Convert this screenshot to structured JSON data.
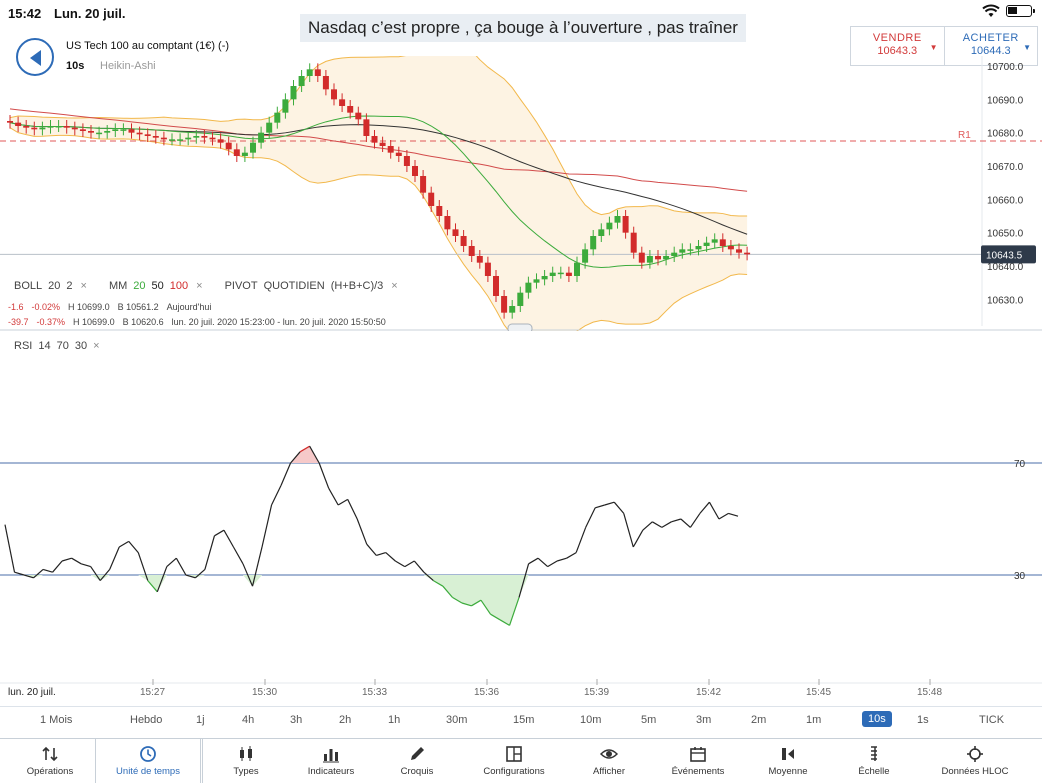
{
  "status": {
    "time": "15:42",
    "date": "Lun. 20 juil."
  },
  "caption": "Nasdaq c’est propre , ça bouge à l’ouverture , pas traîner",
  "instrument": {
    "name": "US Tech 100 au comptant (1€) (-)",
    "timeframe": "10s",
    "candle_type": "Heikin-Ashi"
  },
  "quotes": {
    "sell": {
      "label": "VENDRE",
      "price": "10643.3"
    },
    "buy": {
      "label": "ACHETER",
      "price": "10644.3"
    }
  },
  "price_axis": {
    "ticks": [
      "10700.0",
      "10690.0",
      "10680.0",
      "10670.0",
      "10660.0",
      "10650.0",
      "10640.0",
      "10630.0"
    ],
    "current_price": "10643.5",
    "pivot_label": "R1",
    "pivot_value": 10677.5
  },
  "indicators": {
    "boll": {
      "name": "BOLL",
      "p1": "20",
      "p2": "2"
    },
    "mm": {
      "name": "MM",
      "p1": "20",
      "p2": "50",
      "p3": "100"
    },
    "pivot": {
      "name": "PIVOT",
      "period": "QUOTIDIEN",
      "formula": "(H+B+C)/3"
    },
    "close_glyph": "×"
  },
  "stats": [
    {
      "change": "-1.6",
      "pct": "-0.02%",
      "high": "H 10699.0",
      "low": "B 10561.2",
      "period": "Aujourd'hui"
    },
    {
      "change": "-39.7",
      "pct": "-0.37%",
      "high": "H 10699.0",
      "low": "B 10620.6",
      "period": "lun. 20 juil. 2020 15:23:00 - lun. 20 juil. 2020 15:50:50"
    }
  ],
  "rsi": {
    "name": "RSI",
    "p1": "14",
    "p2": "70",
    "p3": "30",
    "upper": "70",
    "lower": "30"
  },
  "time_axis": {
    "date_label": "lun. 20 juil.",
    "ticks": [
      "15:27",
      "15:30",
      "15:33",
      "15:36",
      "15:39",
      "15:42",
      "15:45",
      "15:48"
    ]
  },
  "timeframes": [
    "1 Mois",
    "Hebdo",
    "1j",
    "4h",
    "3h",
    "2h",
    "1h",
    "30m",
    "15m",
    "10m",
    "5m",
    "3m",
    "2m",
    "1m",
    "10s",
    "1s",
    "TICK"
  ],
  "active_timeframe": "10s",
  "toolbar": [
    {
      "label": "Opérations",
      "icon": "arrows-updown-icon"
    },
    {
      "label": "Unité de temps",
      "icon": "clock-icon"
    },
    {
      "label": "Types",
      "icon": "candles-icon"
    },
    {
      "label": "Indicateurs",
      "icon": "bar-chart-icon"
    },
    {
      "label": "Croquis",
      "icon": "pencil-icon"
    },
    {
      "label": "Configurations",
      "icon": "layout-icon"
    },
    {
      "label": "Afficher",
      "icon": "eye-icon"
    },
    {
      "label": "Événements",
      "icon": "calendar-icon"
    },
    {
      "label": "Moyenne",
      "icon": "average-icon"
    },
    {
      "label": "Échelle",
      "icon": "scale-icon"
    },
    {
      "label": "Données HLOC",
      "icon": "crosshair-icon"
    }
  ],
  "selected_tool": "Unité de temps",
  "colors": {
    "accent": "#2d6bb7",
    "bull": "#3cab3c",
    "bear": "#d22b2b",
    "band": "#f2b84b",
    "pivot": "#e05a5a"
  },
  "chart_data": [
    {
      "type": "candlestick",
      "title": "US Tech 100 au comptant (1€) (-)",
      "ylim": [
        10622,
        10703
      ],
      "x_ticks": [
        "15:27",
        "15:30",
        "15:33",
        "15:36",
        "15:39",
        "15:42",
        "15:45",
        "15:48"
      ],
      "close": [
        10683,
        10682,
        10681.5,
        10681,
        10681.5,
        10682,
        10682,
        10681.5,
        10681,
        10680.5,
        10680,
        10680,
        10680.5,
        10681,
        10681,
        10680,
        10679.5,
        10679,
        10678.5,
        10678,
        10678,
        10678,
        10678.5,
        10679,
        10678.5,
        10678,
        10677,
        10675,
        10673,
        10674,
        10677,
        10680,
        10683,
        10686,
        10690,
        10694,
        10697,
        10699,
        10697,
        10693,
        10690,
        10688,
        10686,
        10684,
        10679,
        10677,
        10676,
        10674,
        10673,
        10670,
        10667,
        10662,
        10658,
        10655,
        10651,
        10649,
        10646,
        10643,
        10641,
        10637,
        10631,
        10626,
        10628,
        10632,
        10635,
        10636,
        10637,
        10638,
        10638,
        10637,
        10641,
        10645,
        10649,
        10651,
        10653,
        10655,
        10650,
        10644,
        10641,
        10643,
        10642,
        10643,
        10644,
        10645,
        10645,
        10646,
        10647,
        10648,
        10646,
        10645,
        10644,
        10643.5
      ]
    },
    {
      "type": "line",
      "title": "RSI 14",
      "ylim": [
        0,
        100
      ],
      "reference_lines": [
        70,
        30
      ],
      "values": [
        48,
        31,
        30,
        29,
        32,
        31,
        35,
        36,
        34,
        33,
        28,
        32,
        40,
        42,
        38,
        28,
        24,
        33,
        36,
        30,
        29,
        32,
        44,
        46,
        40,
        34,
        26,
        40,
        55,
        62,
        70,
        74,
        76,
        70,
        61,
        55,
        57,
        50,
        41,
        37,
        38,
        35,
        33,
        35,
        31,
        28,
        26,
        22,
        20,
        19,
        21,
        16,
        14,
        12,
        22,
        34,
        36,
        33,
        35,
        36,
        38,
        47,
        54,
        55,
        56,
        52,
        40,
        46,
        49,
        47,
        49,
        50,
        47,
        52,
        56,
        50,
        52,
        51
      ]
    }
  ]
}
